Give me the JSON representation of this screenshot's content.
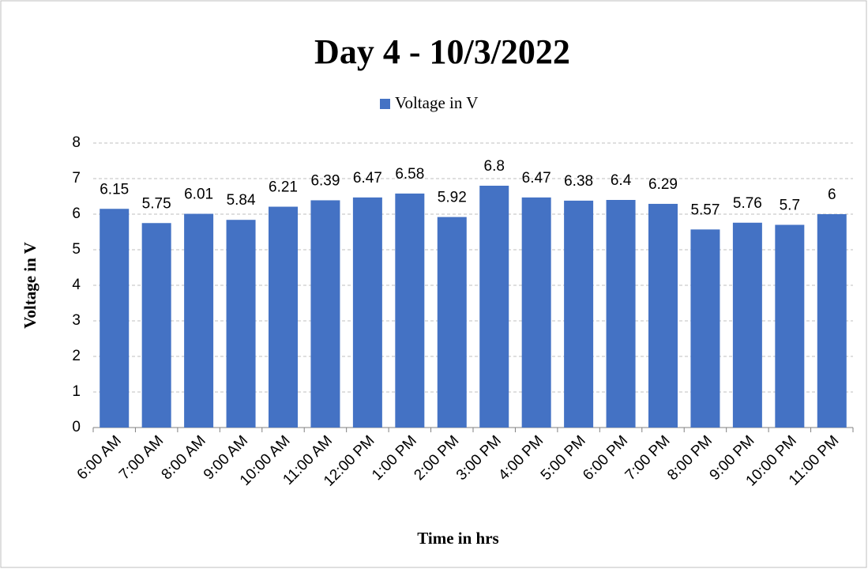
{
  "chart_data": {
    "type": "bar",
    "title": "Day 4 - 10/3/2022",
    "x_label": "Time in hrs",
    "y_label": "Voltage in V",
    "categories": [
      "6:00 AM",
      "7:00 AM",
      "8:00 AM",
      "9:00 AM",
      "10:00 AM",
      "11:00 AM",
      "12:00 PM",
      "1:00 PM",
      "2:00 PM",
      "3:00 PM",
      "4:00 PM",
      "5:00 PM",
      "6:00 PM",
      "7:00 PM",
      "8:00 PM",
      "9:00 PM",
      "10:00 PM",
      "11:00 PM"
    ],
    "series": [
      {
        "name": "Voltage in V",
        "color": "#4472c4",
        "values": [
          6.15,
          5.75,
          6.01,
          5.84,
          6.21,
          6.39,
          6.47,
          6.58,
          5.92,
          6.8,
          6.47,
          6.38,
          6.4,
          6.29,
          5.57,
          5.76,
          5.7,
          6
        ]
      }
    ],
    "ylim": [
      0,
      8
    ],
    "yticks": [
      0,
      1,
      2,
      3,
      4,
      5,
      6,
      7,
      8
    ],
    "grid": true,
    "legend": "top"
  }
}
